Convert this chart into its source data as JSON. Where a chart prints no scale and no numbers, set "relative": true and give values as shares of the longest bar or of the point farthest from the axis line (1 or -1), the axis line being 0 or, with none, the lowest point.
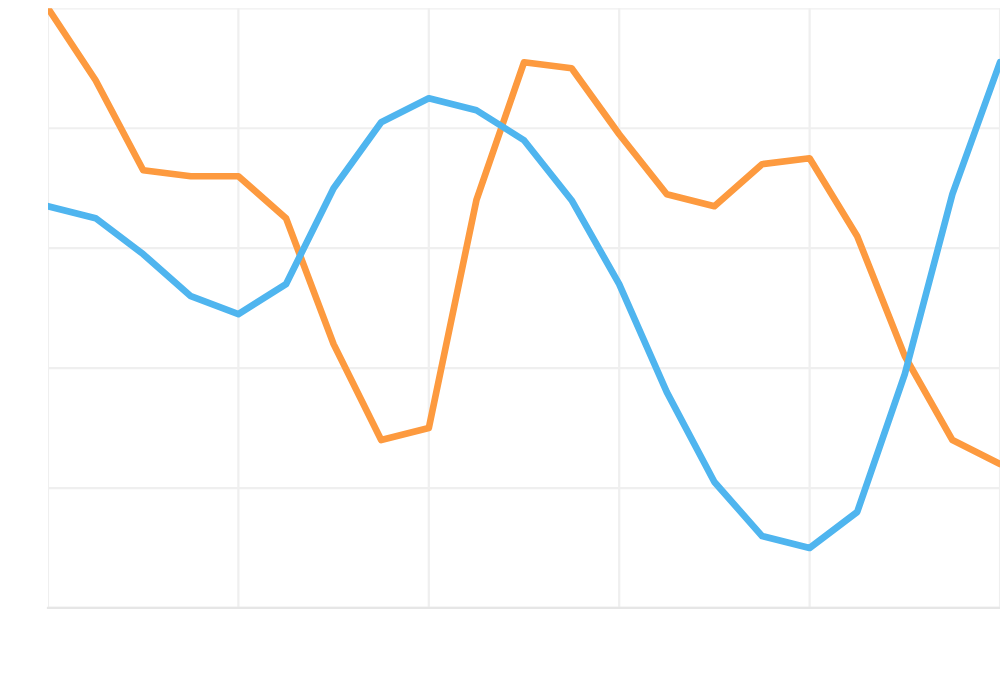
{
  "chart_data": {
    "type": "line",
    "relative": true,
    "grid": true,
    "marker": "none",
    "line_style": "solid",
    "categories": [
      null,
      null,
      null,
      null,
      null,
      null,
      null,
      null,
      null,
      null,
      null,
      null,
      null,
      null,
      null,
      null,
      null,
      null,
      null,
      null,
      null
    ],
    "series": [
      {
        "color": "#fd9a3f",
        "values": [
          1.0,
          0.88,
          0.73,
          0.72,
          0.72,
          0.65,
          0.44,
          0.28,
          0.3,
          0.68,
          0.91,
          0.9,
          0.79,
          0.69,
          0.67,
          0.74,
          0.75,
          0.62,
          0.42,
          0.28,
          0.24
        ]
      },
      {
        "color": "#4fb5ef",
        "values": [
          0.67,
          0.65,
          0.59,
          0.52,
          0.49,
          0.54,
          0.7,
          0.81,
          0.85,
          0.83,
          0.78,
          0.68,
          0.54,
          0.36,
          0.21,
          0.12,
          0.1,
          0.16,
          0.39,
          0.69,
          0.91
        ]
      }
    ]
  }
}
